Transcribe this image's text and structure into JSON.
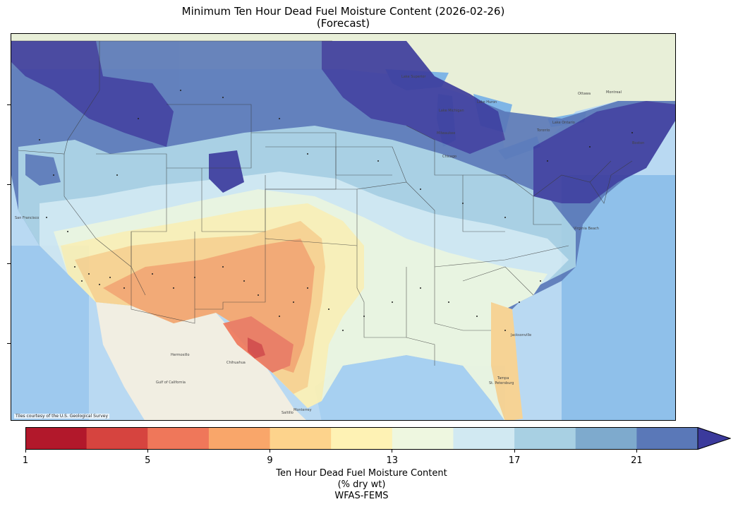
{
  "title": {
    "line1": "Minimum Ten Hour Dead Fuel Moisture Content (2026-02-26)",
    "line2": "(Forecast)"
  },
  "map": {
    "credit": "Tiles courtesy of the U.S. Geological Survey",
    "basemap_labels": [
      "Hermosillo",
      "Chihuahua",
      "Gulf of California",
      "Monterrey",
      "Saltillo",
      "San Francisco",
      "Milwaukee",
      "Chicago",
      "Ottawa",
      "Montreal",
      "Lake Ontario",
      "Lake Superior",
      "Lake Michigan",
      "Lake Huron",
      "Toronto",
      "Boston",
      "Virginia Beach",
      "Jacksonville",
      "Tampa",
      "St. Petersburg"
    ]
  },
  "colorbar": {
    "ticks": [
      "1",
      "5",
      "9",
      "13",
      "17",
      "21"
    ],
    "colors": [
      "#b2182b",
      "#d6443f",
      "#ef775a",
      "#f9a66a",
      "#fdd38c",
      "#fef2b4",
      "#eef7e0",
      "#d1e9f2",
      "#a8d0e3",
      "#7eaacd",
      "#5a78b8",
      "#3b3a9c"
    ],
    "extend": "max",
    "label_line1": "Ten Hour Dead Fuel Moisture Content",
    "label_line2": "(% dry wt)",
    "label_line3": "WFAS-FEMS"
  }
}
